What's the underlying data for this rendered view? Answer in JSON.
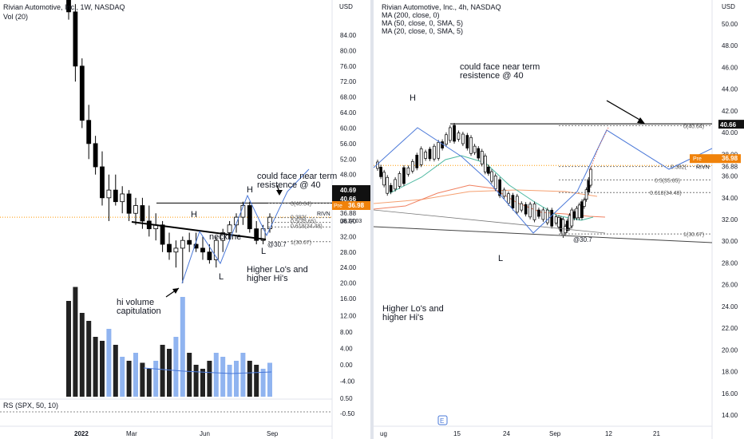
{
  "left": {
    "header": {
      "title": "Rivian Automotive, Inc., 1W, NASDAQ",
      "vol_label": "Vol (20)",
      "rs_label": "RS (SPX, 50, 10)"
    },
    "axis": {
      "unit": "USD",
      "ticks": [
        "84.00",
        "80.00",
        "76.00",
        "72.00",
        "68.00",
        "64.00",
        "60.00",
        "56.00",
        "52.00",
        "48.00",
        "44.00",
        "40.00",
        "36.00",
        "32.00",
        "28.00",
        "24.00",
        "20.00",
        "16.00",
        "12.00",
        "8.00",
        "4.00",
        "0.00",
        "-4.00",
        "-8.00"
      ],
      "rs_ticks": [
        "0.50",
        "-0.50"
      ],
      "price_labels": {
        "resistance": "40.69",
        "resistance2": "40.66",
        "pre_tag": "Pre",
        "pre_value": "36.98",
        "ticker": "RIVN",
        "ticker_value": "36.88",
        "countdown": "08:34:03"
      }
    },
    "x_ticks": [
      "2022",
      "Mar",
      "Jun",
      "Sep"
    ],
    "annotations": {
      "could_face": "could face near term\nresistence @ 40",
      "head": "H",
      "h_left": "H",
      "neckline": "neckline",
      "l_right": "L",
      "l_mid": "L",
      "at_30_7": "@30.7",
      "higher": "Higher Lo's and\nhigher Hi's",
      "capitulation": "hi volume\ncapitulation",
      "fib_0": "0(40.64)",
      "fib_382": "0.382(",
      "fib_5": "0.5(35.65)",
      "fib_618": "0.618(34.48)",
      "fib_1": "1(30.67)"
    }
  },
  "right": {
    "header": {
      "title": "Rivian Automotive, Inc., 4h, NASDAQ",
      "ma1": "MA (200, close, 0)",
      "ma2": "MA (50, close, 0, SMA, 5)",
      "ma3": "MA (20, close, 0, SMA, 5)"
    },
    "axis": {
      "unit": "USD",
      "ticks": [
        "50.00",
        "48.00",
        "46.00",
        "44.00",
        "42.00",
        "40.00",
        "38.00",
        "36.00",
        "34.00",
        "32.00",
        "30.00",
        "28.00",
        "26.00",
        "24.00",
        "22.00",
        "20.00",
        "18.00",
        "16.00",
        "14.00"
      ],
      "price_labels": {
        "resistance": "40.66",
        "pre_tag": "Pre",
        "pre_value": "36.98",
        "ticker": "RIVN",
        "ticker_value": "36.88"
      }
    },
    "x_ticks": [
      "ug",
      "15",
      "24",
      "Sep",
      "12",
      "21"
    ],
    "event_marker": "E",
    "annotations": {
      "could_face": "could face near term\nresistence @ 40",
      "head": "H",
      "low": "L",
      "higher": "Higher Lo's and\nhigher Hi's",
      "at_30_7": "@30.7",
      "fib_0": "0(40.64)",
      "fib_382": "0.382(",
      "fib_5": "0.5(35.65)",
      "fib_618": "0.618(34.48)",
      "fib_1": "1(30.67)"
    }
  },
  "colors": {
    "up": "#ffffff",
    "down": "#000000",
    "vol_up": "#90b4f0",
    "vol_down": "#222222",
    "blue": "#4a78d8",
    "red": "#e05040",
    "orange": "#ff9800",
    "green_ma": "#4cb8a0",
    "orange_ma": "#f5a070",
    "dark_ma": "#1a1a1a",
    "badge": "#f0820a",
    "black_badge": "#111111"
  },
  "chart_data": [
    {
      "type": "candlestick",
      "title": "Rivian Automotive, Inc., 1W, NASDAQ",
      "ylabel": "USD",
      "ylim": [
        16,
        86
      ],
      "x_ticks": [
        "2022",
        "Mar",
        "Jun",
        "Sep"
      ],
      "candles": [
        [
          106,
          108,
          88,
          90
        ],
        [
          90,
          92,
          72,
          76
        ],
        [
          76,
          78,
          60,
          62
        ],
        [
          62,
          66,
          52,
          56
        ],
        [
          56,
          58,
          48,
          50
        ],
        [
          50,
          54,
          40,
          42
        ],
        [
          42,
          48,
          36,
          44
        ],
        [
          44,
          48,
          40,
          41
        ],
        [
          41,
          45,
          38,
          43
        ],
        [
          43,
          44,
          36,
          38
        ],
        [
          38,
          42,
          35,
          40
        ],
        [
          40,
          42,
          34,
          36
        ],
        [
          36,
          40,
          32,
          34
        ],
        [
          34,
          38,
          31,
          35
        ],
        [
          35,
          36,
          28,
          30
        ],
        [
          30,
          33,
          26,
          28
        ],
        [
          28,
          31,
          24,
          29
        ],
        [
          29,
          32,
          20,
          31
        ],
        [
          31,
          33,
          28,
          30
        ],
        [
          30,
          33,
          28,
          29
        ],
        [
          29,
          32,
          26,
          28
        ],
        [
          28,
          30,
          25,
          26
        ],
        [
          26,
          32,
          24,
          31
        ],
        [
          31,
          34,
          28,
          33
        ],
        [
          33,
          36,
          31,
          35
        ],
        [
          35,
          38,
          33,
          37
        ],
        [
          37,
          41,
          35,
          40
        ],
        [
          40,
          41,
          33,
          34
        ],
        [
          34,
          36,
          30,
          31
        ],
        [
          31,
          35,
          30,
          34
        ],
        [
          34,
          38,
          33,
          37
        ]
      ],
      "volume": [
        48,
        55,
        42,
        38,
        30,
        28,
        34,
        26,
        20,
        18,
        22,
        17,
        14,
        18,
        26,
        24,
        30,
        50,
        22,
        16,
        14,
        18,
        22,
        20,
        16,
        18,
        22,
        18,
        16,
        14,
        17
      ],
      "levels": {
        "resistance": 40.66,
        "fib_0": 40.64,
        "fib_382": 36.88,
        "fib_5": 35.65,
        "fib_618": 34.48,
        "fib_1": 30.67,
        "pre": 36.98
      }
    },
    {
      "type": "candlestick",
      "title": "Rivian Automotive, Inc., 4h, NASDAQ",
      "ylabel": "USD",
      "ylim": [
        13,
        51
      ],
      "x_ticks": [
        "ug",
        "15",
        "24",
        "Sep",
        "12",
        "21"
      ],
      "series": [
        {
          "name": "MA (200, close, 0)"
        },
        {
          "name": "MA (50, close, 0, SMA, 5)"
        },
        {
          "name": "MA (20, close, 0, SMA, 5)"
        }
      ],
      "levels": {
        "resistance": 40.66,
        "fib_0": 40.64,
        "fib_382": 36.88,
        "fib_5": 35.65,
        "fib_618": 34.48,
        "fib_1": 30.67,
        "pre": 36.98
      }
    }
  ]
}
